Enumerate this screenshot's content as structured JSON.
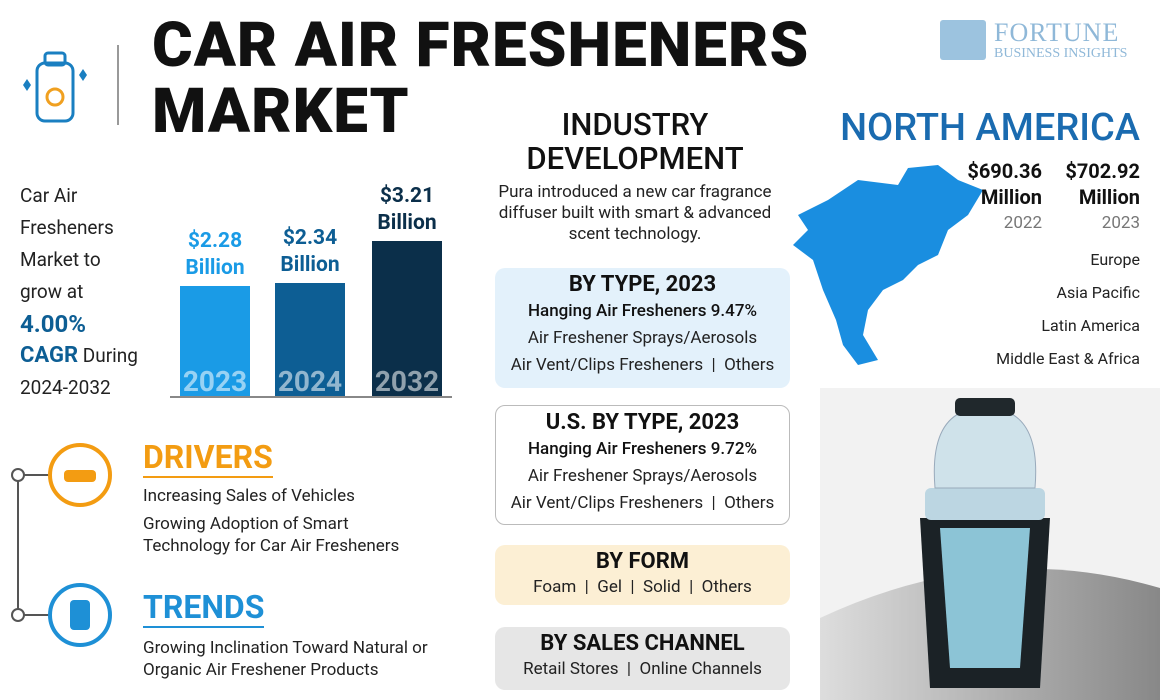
{
  "header": {
    "title_line1": "CAR AIR FRESHENERS",
    "title_line2": "MARKET",
    "logo_name": "FORTUNE",
    "logo_tagline": "BUSINESS INSIGHTS"
  },
  "growth": {
    "intro": "Car Air Fresheners Market to grow at",
    "cagr": "4.00%",
    "cagr_label": "CAGR",
    "period_prefix": "During",
    "period": "2024-2032"
  },
  "market_chart": {
    "categories": [
      "2023",
      "2024",
      "2032"
    ],
    "values": [
      2.28,
      2.34,
      3.21
    ],
    "value_labels": [
      "$2.28 Billion",
      "$2.34 Billion",
      "$3.21 Billion"
    ],
    "colors": [
      "#1a9be6",
      "#0d5e94",
      "#0b2f4a"
    ],
    "label_colors": [
      "#1a9be6",
      "#0d5e94",
      "#0b2f4a"
    ]
  },
  "industry_development": {
    "title": "INDUSTRY DEVELOPMENT",
    "text": "Pura introduced a new car fragrance diffuser built with smart & advanced scent technology."
  },
  "segments": [
    {
      "title": "BY TYPE, 2023",
      "lead": "Hanging Air Fresheners 9.47%",
      "lines": [
        "Air Freshener Sprays/Aerosols",
        "Air Vent/Clips Fresheners  |  Others"
      ]
    },
    {
      "title": "U.S. BY TYPE, 2023",
      "lead": "Hanging Air Fresheners 9.72%",
      "lines": [
        "Air Freshener Sprays/Aerosols",
        "Air Vent/Clips Fresheners  |  Others"
      ]
    },
    {
      "title": "BY FORM",
      "lines": [
        "Foam  |  Gel  |  Solid  |  Others"
      ]
    },
    {
      "title": "BY SALES CHANNEL",
      "lines": [
        "Retail Stores  |  Online Channels"
      ]
    }
  ],
  "region": {
    "title": "NORTH AMERICA",
    "stats": [
      {
        "value": "$690.36",
        "unit": "Million",
        "year": "2022"
      },
      {
        "value": "$702.92",
        "unit": "Million",
        "year": "2023"
      }
    ],
    "others": [
      "Europe",
      "Asia Pacific",
      "Latin America",
      "Middle East & Africa"
    ]
  },
  "drivers": {
    "title": "DRIVERS",
    "items": [
      "Increasing Sales of Vehicles",
      "Growing Adoption of Smart Technology for Car Air Fresheners"
    ]
  },
  "trends": {
    "title": "TRENDS",
    "items": [
      "Growing Inclination Toward Natural or Organic Air Freshener Products"
    ]
  }
}
